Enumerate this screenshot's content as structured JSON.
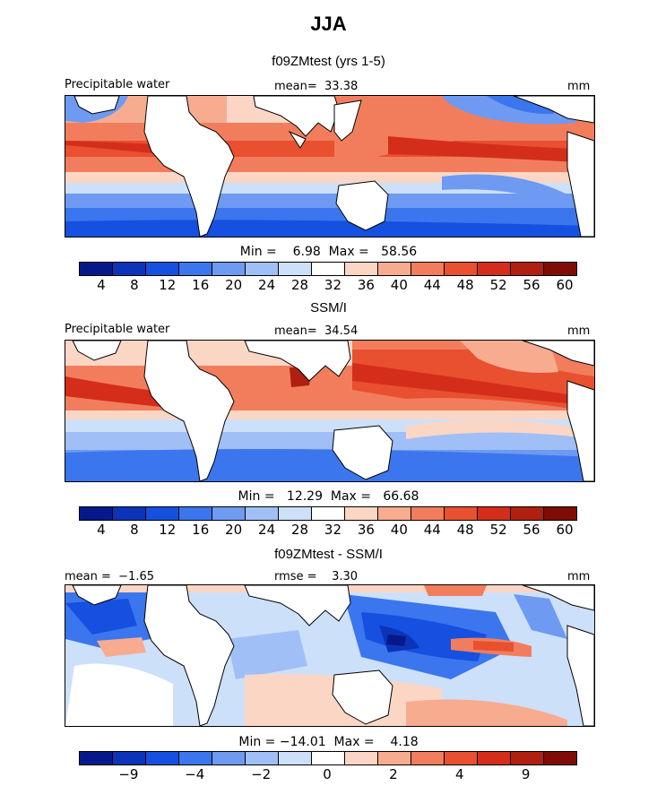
{
  "title": "JJA",
  "colors": {
    "scale": [
      "#07198a",
      "#0b34b8",
      "#1550e0",
      "#3c76ee",
      "#6e9af2",
      "#a0bff6",
      "#cde0fa",
      "#ffffff",
      "#fbd6c5",
      "#f7ac90",
      "#f27d5d",
      "#e8502f",
      "#d42e1b",
      "#b01f10",
      "#7f0c05"
    ],
    "land": "#ffffff"
  },
  "panels": [
    {
      "subtitle": "f09ZMtest (yrs 1-5)",
      "left_label": "Precipitable water",
      "center_label": "mean=  33.38",
      "right_label": "mm",
      "min_max": "Min =    6.98  Max =   58.56",
      "ticks": [
        "4",
        "8",
        "12",
        "16",
        "20",
        "24",
        "28",
        "32",
        "36",
        "40",
        "44",
        "48",
        "52",
        "56",
        "60"
      ]
    },
    {
      "subtitle": "SSM/I",
      "left_label": "Precipitable water",
      "center_label": "mean=  34.54",
      "right_label": "mm",
      "min_max": "Min =   12.29  Max =   66.68",
      "ticks": [
        "4",
        "8",
        "12",
        "16",
        "20",
        "24",
        "28",
        "32",
        "36",
        "40",
        "44",
        "48",
        "52",
        "56",
        "60"
      ]
    },
    {
      "subtitle": "f09ZMtest - SSM/I",
      "left_label": "mean =  −1.65",
      "center_label": "rmse =    3.30",
      "right_label": "mm",
      "min_max": "Min = −14.01  Max =    4.18",
      "ticks": [
        "−9",
        "−4",
        "−2",
        "0",
        "2",
        "4",
        "9"
      ]
    }
  ]
}
